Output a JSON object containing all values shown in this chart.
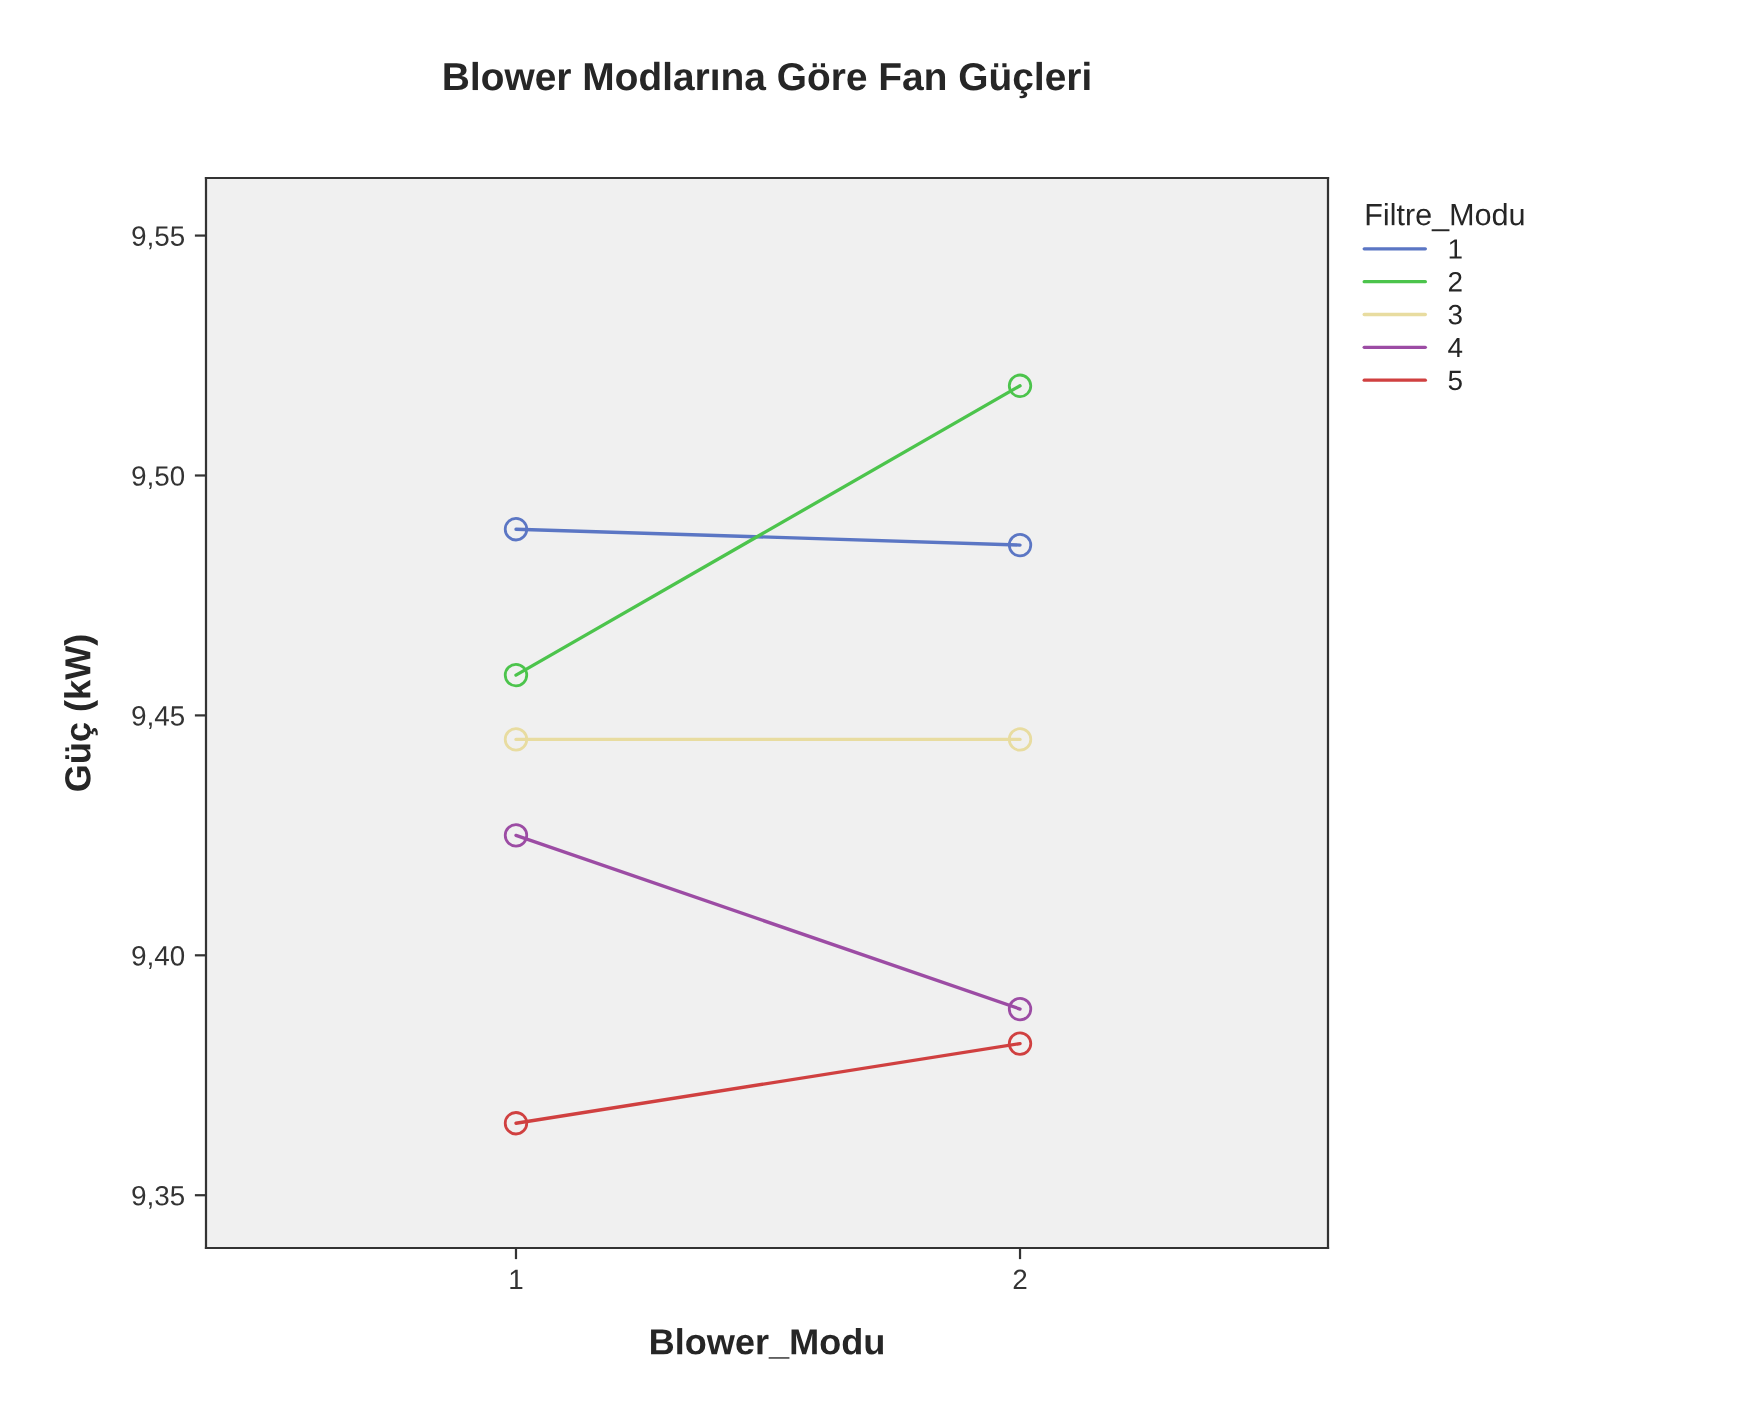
{
  "chart_data": {
    "type": "line",
    "title": "Blower Modlarına Göre Fan Güçleri",
    "xlabel": "Blower_Modu",
    "ylabel": "Güç (kW)",
    "legend_title": "Filtre_Modu",
    "categories": [
      "1",
      "2"
    ],
    "series": [
      {
        "name": "1",
        "color": "#5b76c4",
        "values": [
          9.4888,
          9.4855
        ]
      },
      {
        "name": "2",
        "color": "#4cc44c",
        "values": [
          9.4584,
          9.5187
        ]
      },
      {
        "name": "3",
        "color": "#e8dca0",
        "values": [
          9.445,
          9.445
        ]
      },
      {
        "name": "4",
        "color": "#9c4ca4",
        "values": [
          9.425,
          9.3888
        ]
      },
      {
        "name": "5",
        "color": "#d04040",
        "values": [
          9.365,
          9.3816
        ]
      }
    ],
    "ylim": [
      9.339,
      9.562
    ],
    "yticks": [
      {
        "value": 9.35,
        "label": "9,35"
      },
      {
        "value": 9.4,
        "label": "9,40"
      },
      {
        "value": 9.45,
        "label": "9,45"
      },
      {
        "value": 9.5,
        "label": "9,50"
      },
      {
        "value": 9.55,
        "label": "9,55"
      }
    ],
    "marker": "circle",
    "line_style": "solid",
    "grid": false,
    "legend": "top right"
  }
}
